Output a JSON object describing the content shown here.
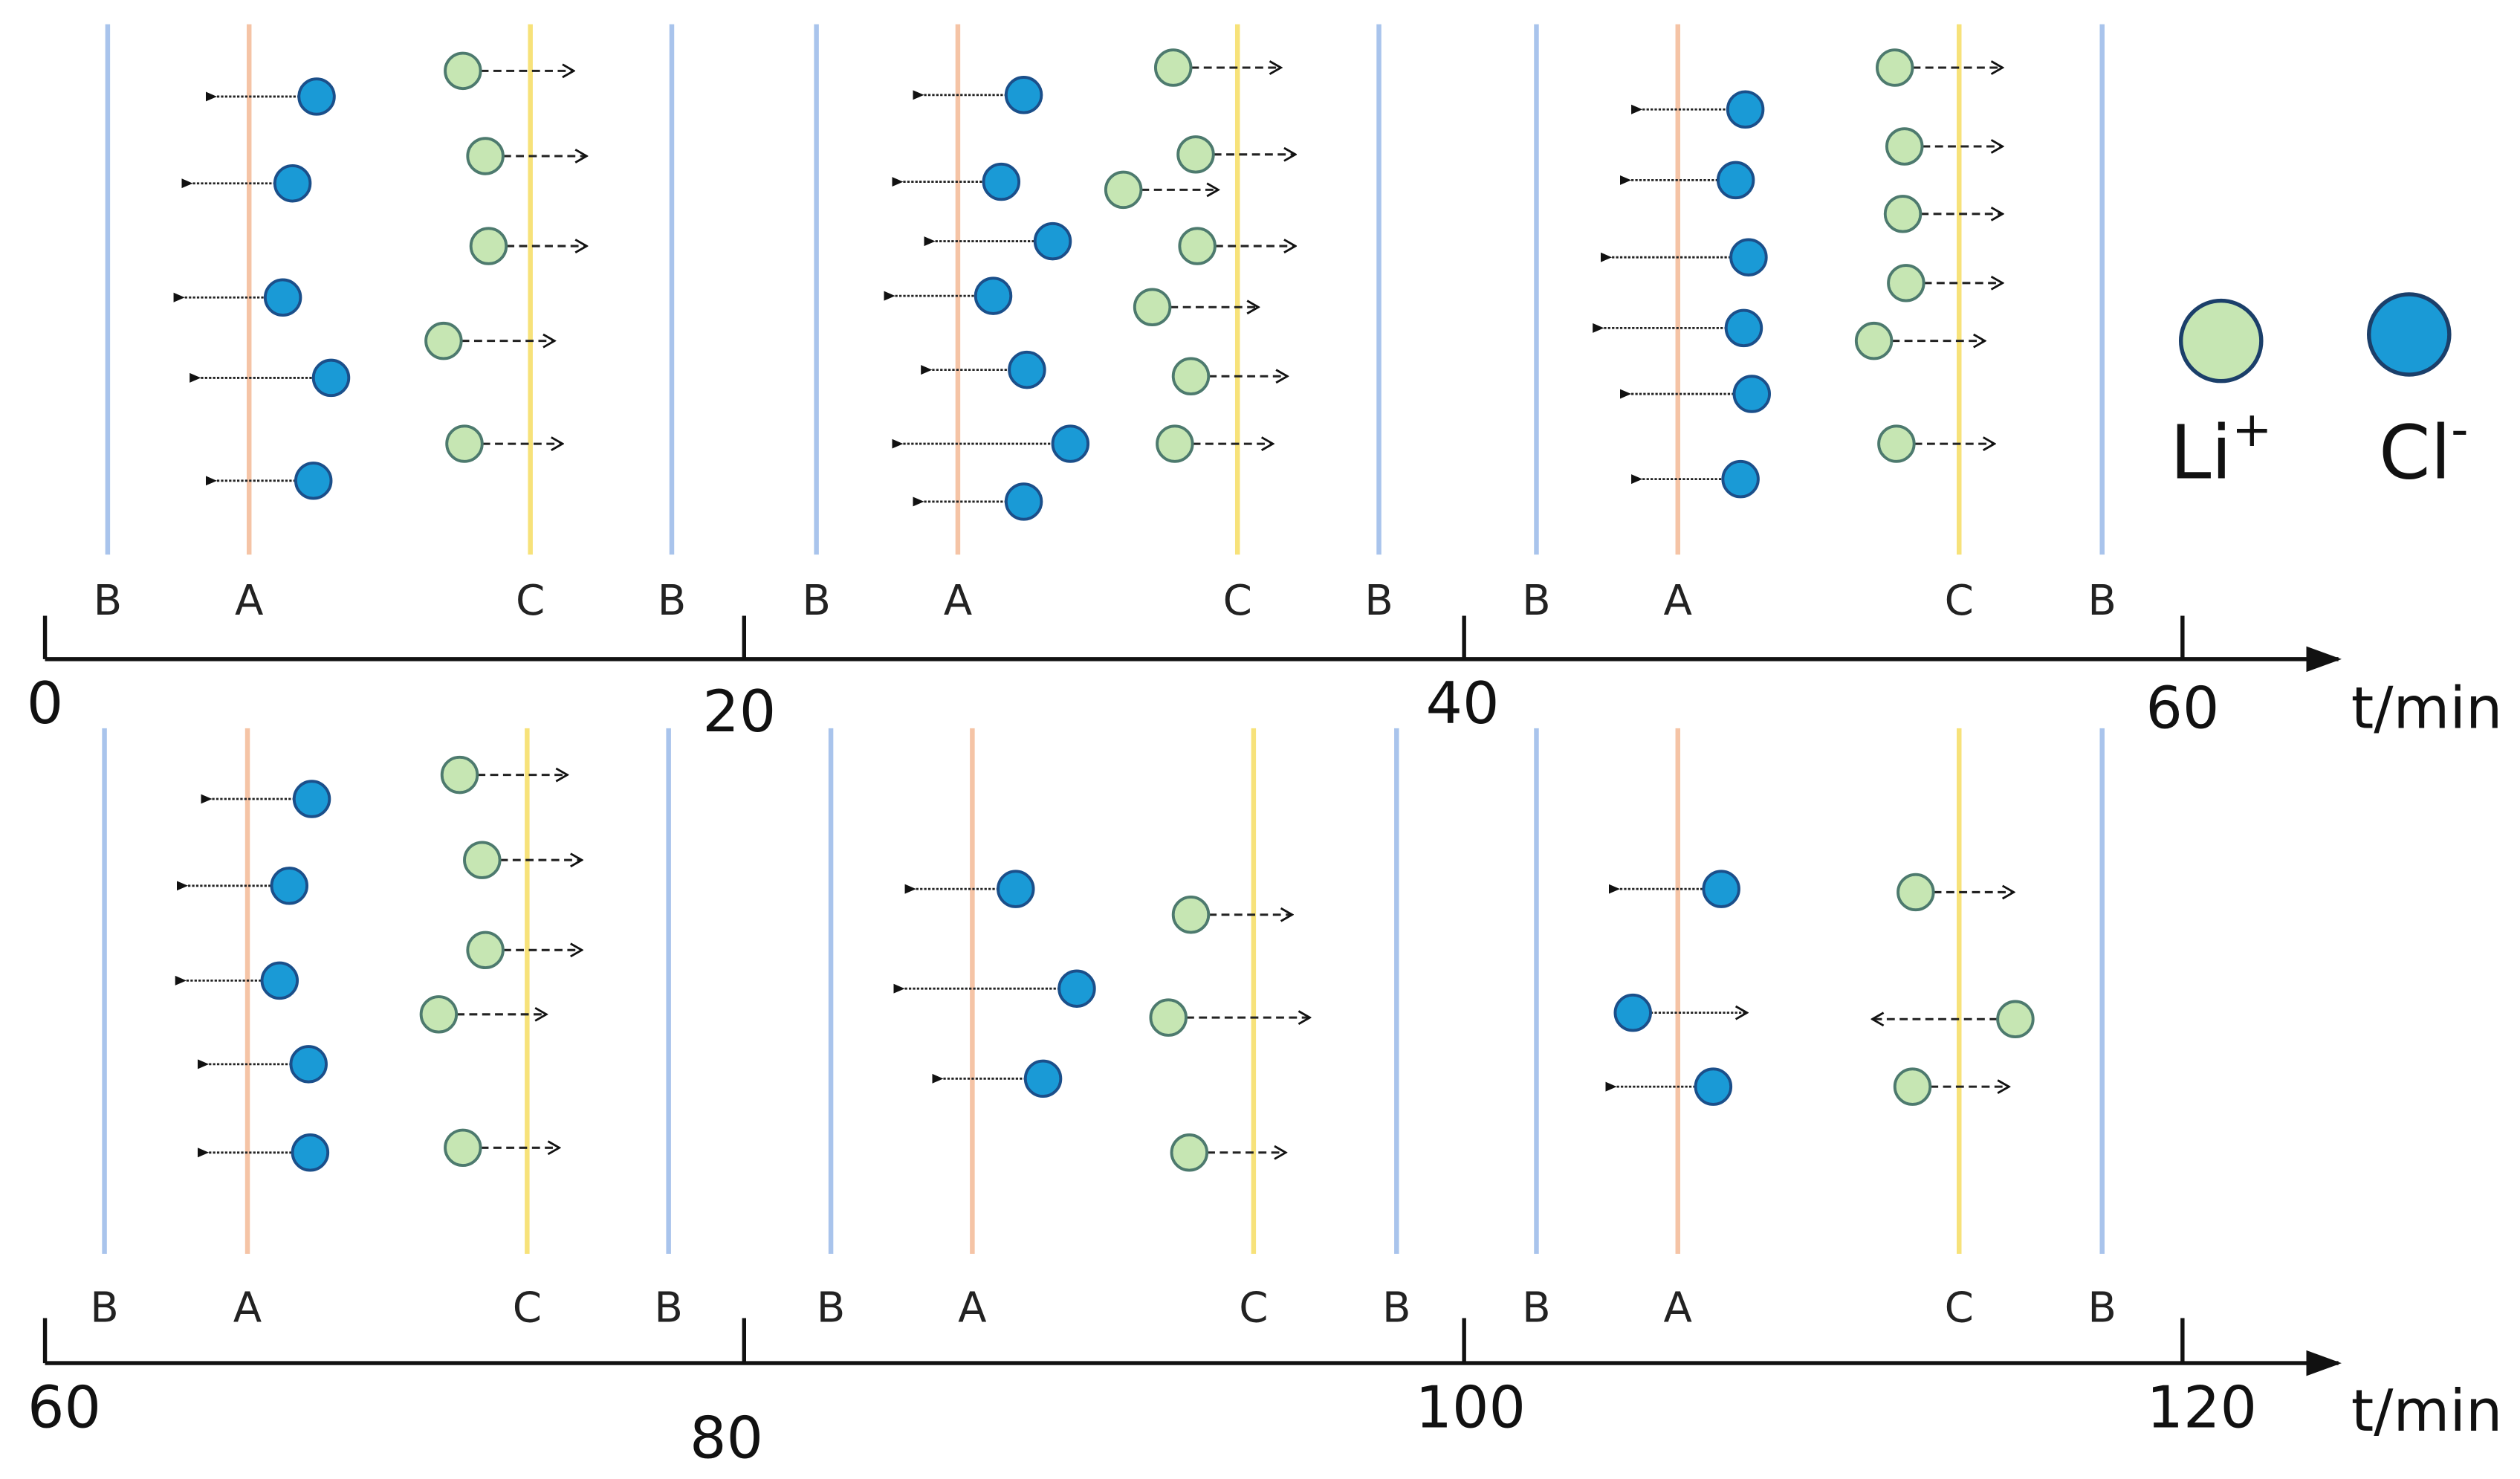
{
  "panels": [
    {
      "labels": [
        "B",
        "A",
        "C",
        "B"
      ]
    },
    {
      "labels": [
        "B",
        "A",
        "C",
        "B"
      ]
    },
    {
      "labels": [
        "B",
        "A",
        "C",
        "B"
      ]
    },
    {
      "labels": [
        "B",
        "A",
        "C",
        "B"
      ]
    },
    {
      "labels": [
        "B",
        "A",
        "C",
        "B"
      ]
    },
    {
      "labels": [
        "B",
        "A",
        "C",
        "B"
      ]
    }
  ],
  "axes": [
    {
      "ticks": [
        "0",
        "20",
        "40",
        "60"
      ],
      "unit": "t/min"
    },
    {
      "ticks": [
        "60",
        "80",
        "100",
        "120"
      ],
      "unit": "t/min"
    }
  ],
  "legend": [
    {
      "label": "Li",
      "sup": "+"
    },
    {
      "label": "Cl",
      "sup": "-"
    }
  ]
}
